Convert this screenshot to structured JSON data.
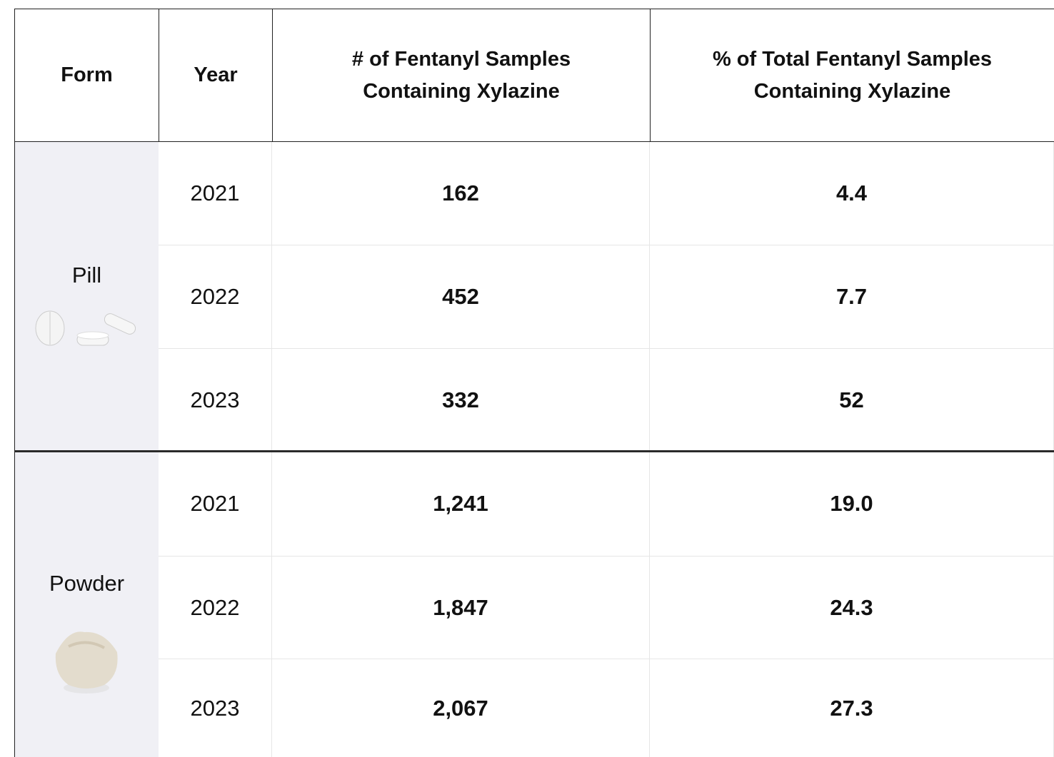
{
  "header": {
    "columns": [
      "Form",
      "Year",
      "# of Fentanyl Samples Containing Xylazine",
      "% of Total Fentanyl Samples Containing Xylazine"
    ]
  },
  "groups": [
    {
      "form": "Pill",
      "rows": [
        [
          "2021",
          "162",
          "4.4"
        ],
        [
          "2022",
          "452",
          "7.7"
        ],
        [
          "2023",
          "332",
          "52"
        ]
      ]
    },
    {
      "form": "Powder",
      "rows": [
        [
          "2021",
          "1,241",
          "19.0"
        ],
        [
          "2022",
          "1,847",
          "24.3"
        ],
        [
          "2023",
          "2,067",
          "27.3"
        ]
      ]
    }
  ]
}
